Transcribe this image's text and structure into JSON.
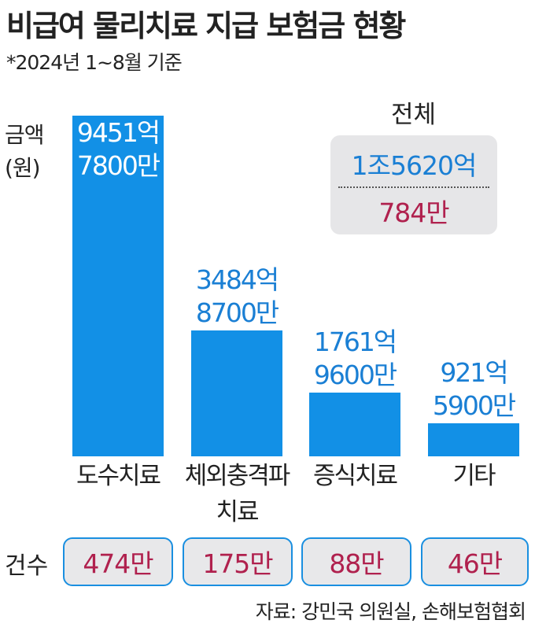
{
  "title": "비급여 물리치료 지급 보험금 현황",
  "subtitle": "*2024년 1~8월 기준",
  "chart_data": {
    "type": "bar",
    "y_label": [
      "금액",
      "(원)"
    ],
    "categories": [
      "도수치료",
      "체외충격파 치료",
      "증식치료",
      "기타"
    ],
    "values": [
      9451.78,
      3484.87,
      1761.96,
      921.59
    ],
    "value_labels": [
      [
        "9451억",
        "7800만"
      ],
      [
        "3484억",
        "8700만"
      ],
      [
        "1761억",
        "9600만"
      ],
      [
        "921억",
        "5900만"
      ]
    ],
    "color": "#1290e6"
  },
  "counts": {
    "label": "건수",
    "values": [
      "474만",
      "175만",
      "88만",
      "46만"
    ]
  },
  "total": {
    "label": "전체",
    "lines": [
      "1조5620억",
      "784만"
    ]
  },
  "source": "자료: 강민국 의원실, 손해보험협회"
}
